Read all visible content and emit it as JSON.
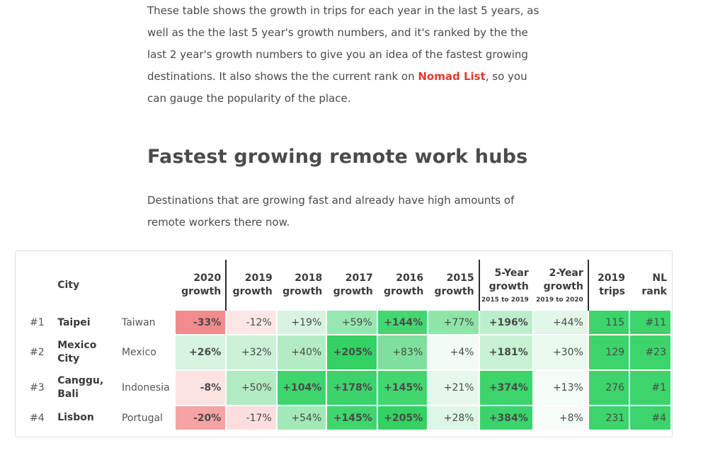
{
  "intro": {
    "text_before_link": "These table shows the growth in trips for each year in the last 5 years, as well as the the last 5 year's growth numbers, and it's ranked by the the last 2 year's growth numbers to give you an idea of the fastest growing destinations. It also shows the the current rank on ",
    "link_text": "Nomad List",
    "text_after_link": ", so you can gauge the popularity of the place."
  },
  "heading": "Fastest growing remote work hubs",
  "subtitle": "Destinations that are growing fast and already have high amounts of remote workers there now.",
  "table": {
    "headers": {
      "city": "City",
      "g2020": [
        "2020",
        "growth"
      ],
      "g2019": [
        "2019",
        "growth"
      ],
      "g2018": [
        "2018",
        "growth"
      ],
      "g2017": [
        "2017",
        "growth"
      ],
      "g2016": [
        "2016",
        "growth"
      ],
      "g2015": [
        "2015",
        "growth"
      ],
      "five_year": [
        "5-Year",
        "growth",
        "2015 to 2019"
      ],
      "two_year": [
        "2-Year",
        "growth",
        "2019 to 2020"
      ],
      "trips": [
        "2019",
        "trips"
      ],
      "nl_rank": [
        "NL",
        "rank"
      ]
    },
    "rows": [
      {
        "rank": "#1",
        "city": "Taipei",
        "country": "Taiwan",
        "g2020": "-33%",
        "g2019": "-12%",
        "g2018": "+19%",
        "g2017": "+59%",
        "g2016": "+144%",
        "g2015": "+77%",
        "five_year": "+196%",
        "two_year": "+44%",
        "trips": "115",
        "nl_rank": "#11"
      },
      {
        "rank": "#2",
        "city": "Mexico City",
        "country": "Mexico",
        "g2020": "+26%",
        "g2019": "+32%",
        "g2018": "+40%",
        "g2017": "+205%",
        "g2016": "+83%",
        "g2015": "+4%",
        "five_year": "+181%",
        "two_year": "+30%",
        "trips": "129",
        "nl_rank": "#23"
      },
      {
        "rank": "#3",
        "city": "Canggu, Bali",
        "country": "Indonesia",
        "g2020": "-8%",
        "g2019": "+50%",
        "g2018": "+104%",
        "g2017": "+178%",
        "g2016": "+145%",
        "g2015": "+21%",
        "five_year": "+374%",
        "two_year": "+13%",
        "trips": "276",
        "nl_rank": "#1"
      },
      {
        "rank": "#4",
        "city": "Lisbon",
        "country": "Portugal",
        "g2020": "-20%",
        "g2019": "-17%",
        "g2018": "+54%",
        "g2017": "+145%",
        "g2016": "+205%",
        "g2015": "+28%",
        "five_year": "+384%",
        "two_year": "+8%",
        "trips": "231",
        "nl_rank": "#4"
      }
    ]
  },
  "colors": {
    "link": "#e23b2b",
    "negative_strong": "#f28b8b",
    "negative_light": "#fbd9d9",
    "positive_strong": "#3cd46b",
    "positive_light": "#e9f8ee"
  }
}
